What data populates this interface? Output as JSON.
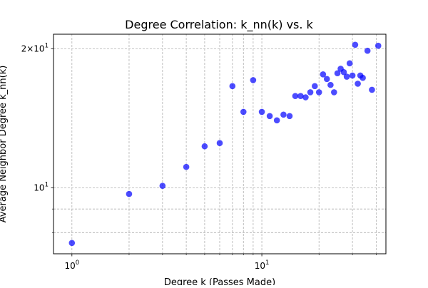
{
  "chart_data": {
    "type": "scatter",
    "title": "Degree Correlation: k_nn(k) vs. k",
    "xlabel": "Degree k (Passes Made)",
    "ylabel": "Average Neighbor Degree k_nn(k)",
    "xscale": "log",
    "yscale": "log",
    "xlim": [
      0.8,
      45
    ],
    "ylim": [
      7.2,
      21.5
    ],
    "grid": true,
    "marker_color": "#0000ff",
    "marker_alpha": 0.7,
    "x_major_ticks": [
      {
        "value": 1,
        "base": "10",
        "exp": "0"
      },
      {
        "value": 10,
        "base": "10",
        "exp": "1"
      }
    ],
    "x_minor_ticks": [
      2,
      3,
      4,
      5,
      6,
      7,
      8,
      9,
      20,
      30,
      40
    ],
    "y_major_ticks": [
      {
        "value": 10,
        "mantissa": "",
        "base": "10",
        "exp": "1"
      },
      {
        "value": 20,
        "mantissa": "2×",
        "base": "10",
        "exp": "1"
      }
    ],
    "y_minor_ticks": [
      8,
      9
    ],
    "points": [
      {
        "x": 1,
        "y": 7.6
      },
      {
        "x": 2,
        "y": 9.7
      },
      {
        "x": 3,
        "y": 10.1
      },
      {
        "x": 4,
        "y": 11.1
      },
      {
        "x": 5,
        "y": 12.3
      },
      {
        "x": 6,
        "y": 12.5
      },
      {
        "x": 7,
        "y": 16.6
      },
      {
        "x": 8,
        "y": 14.6
      },
      {
        "x": 9,
        "y": 17.1
      },
      {
        "x": 10,
        "y": 14.6
      },
      {
        "x": 11,
        "y": 14.3
      },
      {
        "x": 12,
        "y": 14.0
      },
      {
        "x": 13,
        "y": 14.4
      },
      {
        "x": 14,
        "y": 14.3
      },
      {
        "x": 15,
        "y": 15.8
      },
      {
        "x": 16,
        "y": 15.8
      },
      {
        "x": 17,
        "y": 15.7
      },
      {
        "x": 18,
        "y": 16.1
      },
      {
        "x": 19,
        "y": 16.6
      },
      {
        "x": 20,
        "y": 16.1
      },
      {
        "x": 21,
        "y": 17.6
      },
      {
        "x": 22,
        "y": 17.2
      },
      {
        "x": 23,
        "y": 16.7
      },
      {
        "x": 24,
        "y": 16.1
      },
      {
        "x": 25,
        "y": 17.7
      },
      {
        "x": 26,
        "y": 18.1
      },
      {
        "x": 27,
        "y": 17.8
      },
      {
        "x": 28,
        "y": 17.4
      },
      {
        "x": 29,
        "y": 18.6
      },
      {
        "x": 30,
        "y": 17.5
      },
      {
        "x": 31,
        "y": 20.4
      },
      {
        "x": 32,
        "y": 16.8
      },
      {
        "x": 33,
        "y": 17.5
      },
      {
        "x": 34,
        "y": 17.3
      },
      {
        "x": 36,
        "y": 19.8
      },
      {
        "x": 38,
        "y": 16.3
      },
      {
        "x": 41,
        "y": 20.3
      }
    ]
  }
}
